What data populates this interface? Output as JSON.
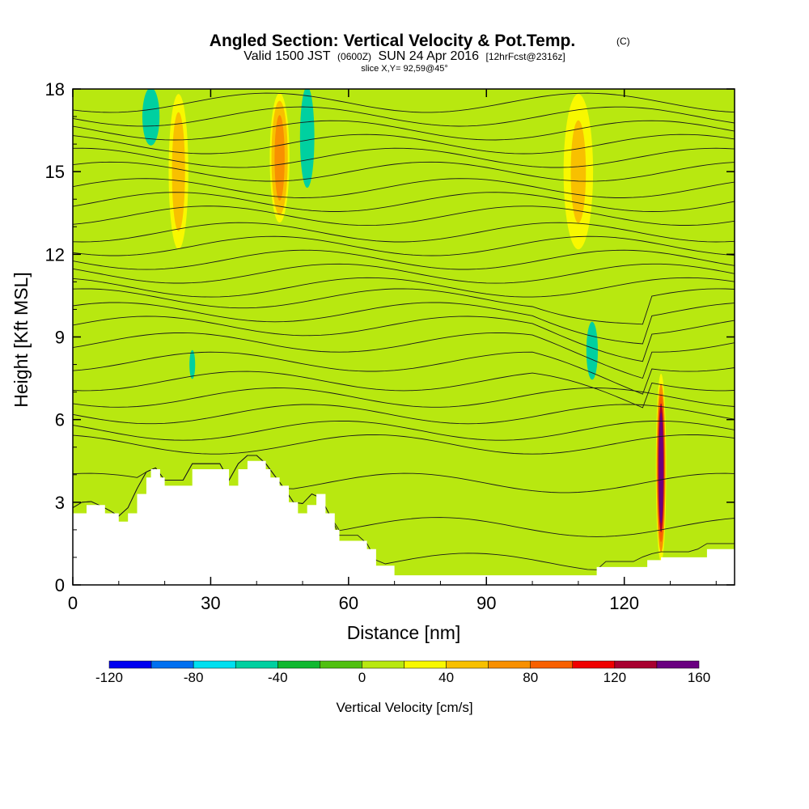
{
  "title": {
    "main": "Angled Section: Vertical Velocity & Pot.Temp.",
    "units_tag": "(C)",
    "valid_prefix": "Valid 1500 JST",
    "valid_zulu": "(0600Z)",
    "valid_date": "SUN 24 Apr 2016",
    "forecast_tag": "[12hrFcst@2316z]",
    "slice": "slice X,Y= 92,59@45°"
  },
  "chart_data": {
    "type": "heatmap",
    "xlabel": "Distance [nm]",
    "ylabel": "Height [Kft MSL]",
    "xlim": [
      0,
      144
    ],
    "ylim": [
      0,
      18
    ],
    "x_ticks": [
      0,
      30,
      60,
      90,
      120
    ],
    "x_tick_labels": [
      "0",
      "30",
      "60",
      "90",
      "120"
    ],
    "y_ticks": [
      0,
      3,
      6,
      9,
      12,
      15,
      18
    ],
    "y_tick_labels": [
      "0",
      "3",
      "6",
      "9",
      "12",
      "15",
      "18"
    ],
    "grid": false,
    "colorbar": {
      "label": "Vertical Velocity [cm/s]",
      "placement": "bottom",
      "boundaries": [
        -120,
        -100,
        -80,
        -60,
        -40,
        -20,
        0,
        20,
        40,
        60,
        80,
        100,
        120,
        140,
        160
      ],
      "tick_values": [
        -120,
        -80,
        -40,
        0,
        40,
        80,
        120,
        160
      ],
      "tick_labels": [
        "-120",
        "-80",
        "-40",
        "0",
        "40",
        "80",
        "120",
        "160"
      ],
      "colors": [
        "#0000f0",
        "#0070f0",
        "#00e0f0",
        "#00d0a0",
        "#10b830",
        "#50c010",
        "#b8e810",
        "#f8f800",
        "#f8c000",
        "#f89000",
        "#f86000",
        "#f00000",
        "#a80030",
        "#6a0080"
      ]
    },
    "terrain_kft": [
      [
        0,
        2.6
      ],
      [
        3,
        2.9
      ],
      [
        7,
        2.6
      ],
      [
        10,
        2.3
      ],
      [
        12,
        2.6
      ],
      [
        14,
        3.3
      ],
      [
        16,
        3.9
      ],
      [
        17,
        4.2
      ],
      [
        19,
        3.9
      ],
      [
        20,
        3.6
      ],
      [
        25,
        3.6
      ],
      [
        26,
        4.2
      ],
      [
        33,
        4.2
      ],
      [
        34,
        3.6
      ],
      [
        36,
        4.2
      ],
      [
        38,
        4.5
      ],
      [
        41,
        4.5
      ],
      [
        42,
        4.2
      ],
      [
        43,
        3.9
      ],
      [
        45,
        3.6
      ],
      [
        47,
        3.0
      ],
      [
        49,
        2.6
      ],
      [
        51,
        2.9
      ],
      [
        53,
        3.3
      ],
      [
        55,
        2.6
      ],
      [
        57,
        2.0
      ],
      [
        58,
        1.6
      ],
      [
        62,
        1.6
      ],
      [
        64,
        1.3
      ],
      [
        66,
        0.7
      ],
      [
        70,
        0.35
      ],
      [
        85,
        0.35
      ],
      [
        95,
        0.35
      ],
      [
        104,
        0.35
      ],
      [
        114,
        0.35
      ],
      [
        114,
        0.65
      ],
      [
        119,
        0.65
      ],
      [
        122,
        0.65
      ],
      [
        125,
        0.9
      ],
      [
        128,
        1.0
      ],
      [
        131,
        1.0
      ],
      [
        135,
        1.0
      ],
      [
        138,
        1.3
      ],
      [
        144,
        1.3
      ]
    ],
    "background_value_cms": 5,
    "updraft_bands": [
      {
        "x_center": 23,
        "width_nm": 4,
        "y_from_kft": 12,
        "y_to_kft": 18,
        "peak_cms": 50
      },
      {
        "x_center": 45,
        "width_nm": 4,
        "y_from_kft": 13,
        "y_to_kft": 18,
        "peak_cms": 65
      },
      {
        "x_center": 110,
        "width_nm": 6,
        "y_from_kft": 12,
        "y_to_kft": 18,
        "peak_cms": 45
      },
      {
        "x_center": 128,
        "width_nm": 1.8,
        "y_from_kft": 1.0,
        "y_to_kft": 7.5,
        "peak_cms": 150
      }
    ],
    "downdraft_patches": [
      {
        "x_center": 17,
        "width_nm": 3,
        "y_from_kft": 16,
        "y_to_kft": 18,
        "peak_cms": -50
      },
      {
        "x_center": 51,
        "width_nm": 2.5,
        "y_from_kft": 14.5,
        "y_to_kft": 18,
        "peak_cms": -45
      },
      {
        "x_center": 113,
        "width_nm": 2,
        "y_from_kft": 7.5,
        "y_to_kft": 9.5,
        "peak_cms": -55
      },
      {
        "x_center": 26,
        "width_nm": 1,
        "y_from_kft": 7.5,
        "y_to_kft": 8.5,
        "peak_cms": -50
      }
    ],
    "pot_temp_contours": {
      "type": "line",
      "interval_c": 1,
      "levels_kft": [
        0.8,
        2.1,
        3.7,
        5.1,
        5.6,
        6.2,
        6.8,
        7.4,
        8.1,
        8.8,
        9.4,
        9.9,
        10.4,
        10.8,
        11.3,
        11.8,
        12.3,
        12.8,
        13.4,
        13.9,
        14.4,
        15.0,
        15.5,
        16.0,
        16.5,
        17.0,
        17.5
      ]
    }
  }
}
